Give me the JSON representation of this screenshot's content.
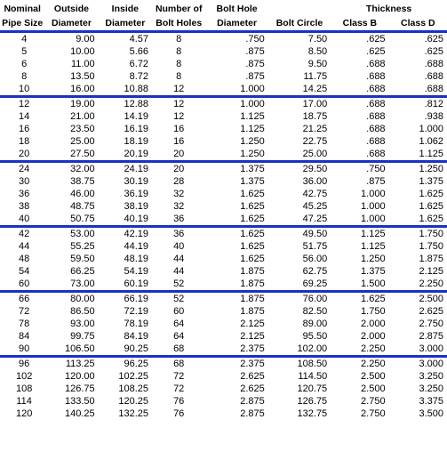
{
  "columns": {
    "nominal1": "Nominal",
    "nominal2": "Pipe Size",
    "outside1": "Outside",
    "outside2": "Diameter",
    "inside1": "Inside",
    "inside2": "Diameter",
    "numbolt1": "Number of",
    "numbolt2": "Bolt Holes",
    "bolthole1": "Bolt Hole",
    "bolthole2": "Diameter",
    "boltcircle": "Bolt Circle",
    "thickness": "Thickness",
    "classB": "Class B",
    "classD": "Class D"
  },
  "groups": [
    [
      [
        "4",
        "9.00",
        "4.57",
        "8",
        ".750",
        "7.50",
        ".625",
        ".625"
      ],
      [
        "5",
        "10.00",
        "5.66",
        "8",
        ".875",
        "8.50",
        ".625",
        ".625"
      ],
      [
        "6",
        "11.00",
        "6.72",
        "8",
        ".875",
        "9.50",
        ".688",
        ".688"
      ],
      [
        "8",
        "13.50",
        "8.72",
        "8",
        ".875",
        "11.75",
        ".688",
        ".688"
      ],
      [
        "10",
        "16.00",
        "10.88",
        "12",
        "1.000",
        "14.25",
        ".688",
        ".688"
      ]
    ],
    [
      [
        "12",
        "19.00",
        "12.88",
        "12",
        "1.000",
        "17.00",
        ".688",
        ".812"
      ],
      [
        "14",
        "21.00",
        "14.19",
        "12",
        "1.125",
        "18.75",
        ".688",
        ".938"
      ],
      [
        "16",
        "23.50",
        "16.19",
        "16",
        "1.125",
        "21.25",
        ".688",
        "1.000"
      ],
      [
        "18",
        "25.00",
        "18.19",
        "16",
        "1.250",
        "22.75",
        ".688",
        "1.062"
      ],
      [
        "20",
        "27.50",
        "20.19",
        "20",
        "1.250",
        "25.00",
        ".688",
        "1.125"
      ]
    ],
    [
      [
        "24",
        "32.00",
        "24.19",
        "20",
        "1.375",
        "29.50",
        ".750",
        "1.250"
      ],
      [
        "30",
        "38.75",
        "30.19",
        "28",
        "1.375",
        "36.00",
        ".875",
        "1.375"
      ],
      [
        "36",
        "46.00",
        "36.19",
        "32",
        "1.625",
        "42.75",
        "1.000",
        "1.625"
      ],
      [
        "38",
        "48.75",
        "38.19",
        "32",
        "1.625",
        "45.25",
        "1.000",
        "1.625"
      ],
      [
        "40",
        "50.75",
        "40.19",
        "36",
        "1.625",
        "47.25",
        "1.000",
        "1.625"
      ]
    ],
    [
      [
        "42",
        "53.00",
        "42.19",
        "36",
        "1.625",
        "49.50",
        "1.125",
        "1.750"
      ],
      [
        "44",
        "55.25",
        "44.19",
        "40",
        "1.625",
        "51.75",
        "1.125",
        "1.750"
      ],
      [
        "48",
        "59.50",
        "48.19",
        "44",
        "1.625",
        "56.00",
        "1.250",
        "1.875"
      ],
      [
        "54",
        "66.25",
        "54.19",
        "44",
        "1.875",
        "62.75",
        "1.375",
        "2.125"
      ],
      [
        "60",
        "73.00",
        "60.19",
        "52",
        "1.875",
        "69.25",
        "1.500",
        "2.250"
      ]
    ],
    [
      [
        "66",
        "80.00",
        "66.19",
        "52",
        "1.875",
        "76.00",
        "1.625",
        "2.500"
      ],
      [
        "72",
        "86.50",
        "72.19",
        "60",
        "1.875",
        "82.50",
        "1.750",
        "2.625"
      ],
      [
        "78",
        "93.00",
        "78.19",
        "64",
        "2.125",
        "89.00",
        "2.000",
        "2.750"
      ],
      [
        "84",
        "99.75",
        "84.19",
        "64",
        "2.125",
        "95.50",
        "2.000",
        "2.875"
      ],
      [
        "90",
        "106.50",
        "90.25",
        "68",
        "2.375",
        "102.00",
        "2.250",
        "3.000"
      ]
    ],
    [
      [
        "96",
        "113.25",
        "96.25",
        "68",
        "2.375",
        "108.50",
        "2.250",
        "3.000"
      ],
      [
        "102",
        "120.00",
        "102.25",
        "72",
        "2.625",
        "114.50",
        "2.500",
        "3.250"
      ],
      [
        "108",
        "126.75",
        "108.25",
        "72",
        "2.625",
        "120.75",
        "2.500",
        "3.250"
      ],
      [
        "114",
        "133.50",
        "120.25",
        "76",
        "2.875",
        "126.75",
        "2.750",
        "3.375"
      ],
      [
        "120",
        "140.25",
        "132.25",
        "76",
        "2.875",
        "132.75",
        "2.750",
        "3.500"
      ]
    ]
  ]
}
